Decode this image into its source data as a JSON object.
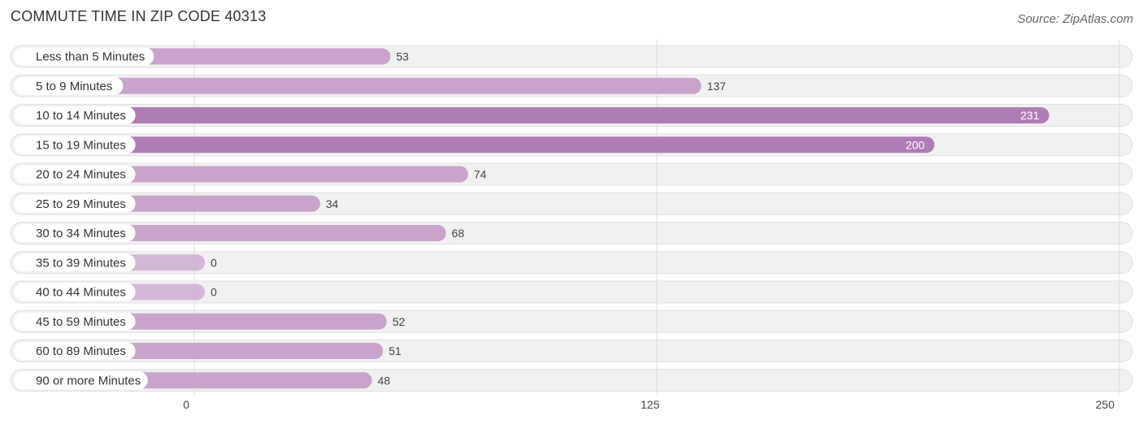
{
  "header": {
    "title": "COMMUTE TIME IN ZIP CODE 40313",
    "source": "Source: ZipAtlas.com"
  },
  "colors": {
    "bar_normal": "#c9a3cc",
    "bar_highlight": "#b07cb6",
    "row_bg": "#f1f1f1",
    "row_border": "#e0e0e0",
    "grid": "#dddddd"
  },
  "chart_data": {
    "type": "bar",
    "orientation": "horizontal",
    "title": "COMMUTE TIME IN ZIP CODE 40313",
    "categories": [
      "Less than 5 Minutes",
      "5 to 9 Minutes",
      "10 to 14 Minutes",
      "15 to 19 Minutes",
      "20 to 24 Minutes",
      "25 to 29 Minutes",
      "30 to 34 Minutes",
      "35 to 39 Minutes",
      "40 to 44 Minutes",
      "45 to 59 Minutes",
      "60 to 89 Minutes",
      "90 or more Minutes"
    ],
    "values": [
      53,
      137,
      231,
      200,
      74,
      34,
      68,
      0,
      0,
      52,
      51,
      48
    ],
    "xlim": [
      0,
      250
    ],
    "xticks": [
      0,
      125,
      250
    ],
    "grid": true,
    "legend": "none"
  }
}
